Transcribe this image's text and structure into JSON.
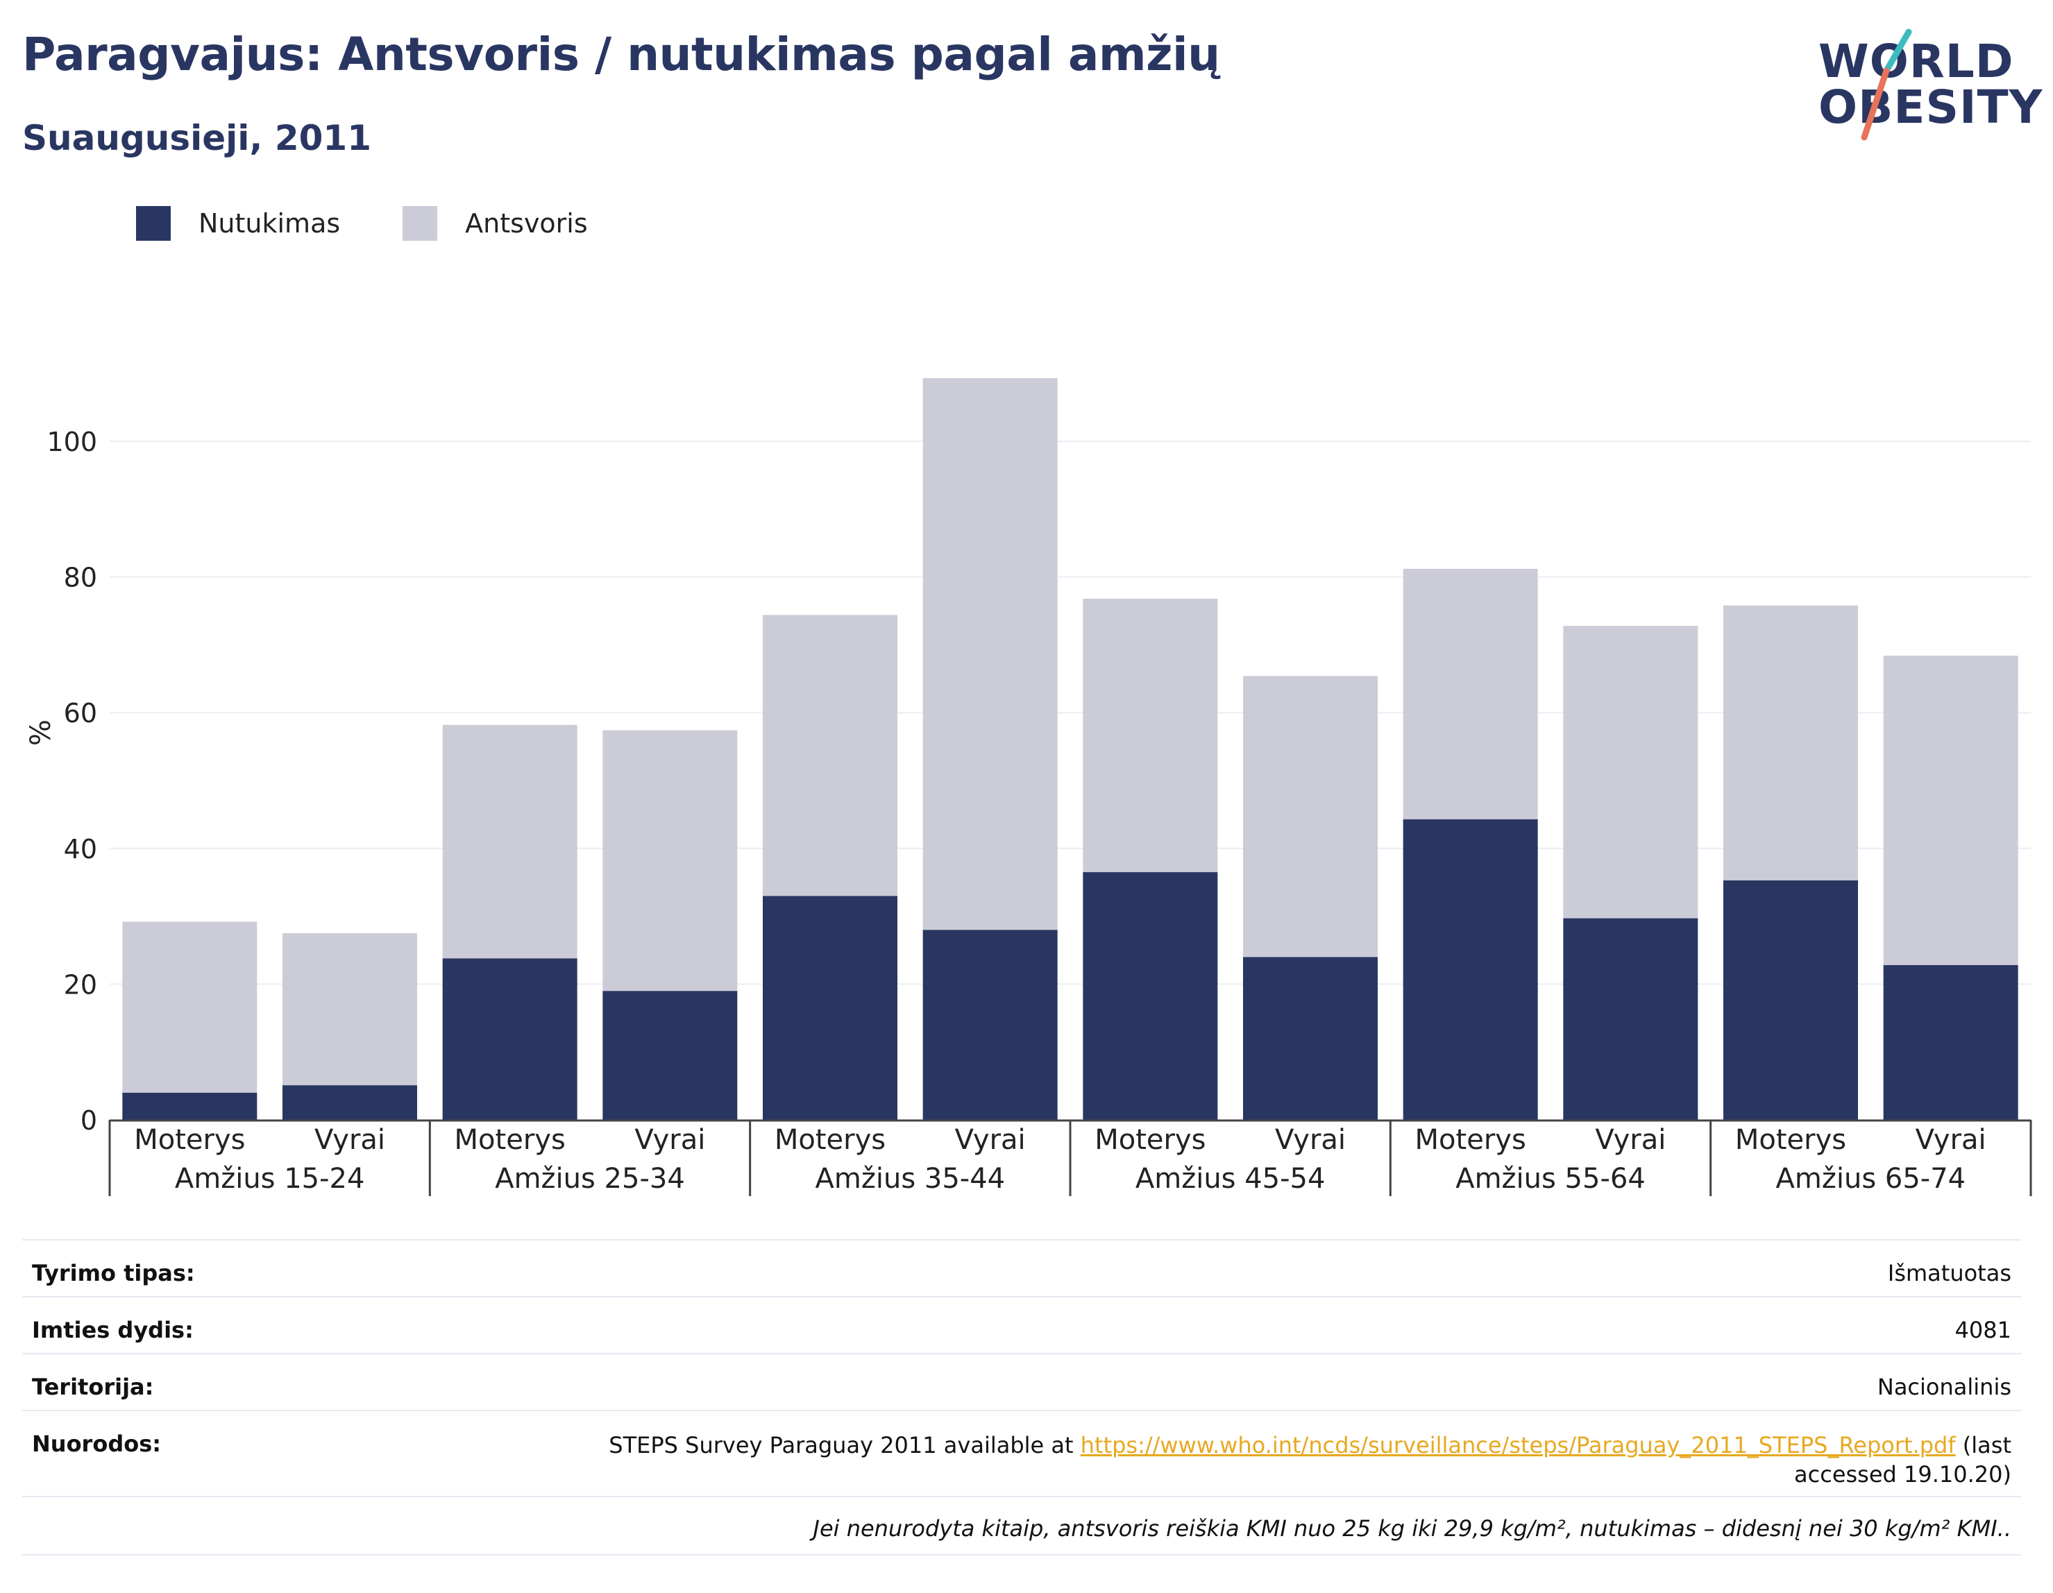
{
  "header": {
    "title": "Paragvajus: Antsvoris / nutukimas pagal amžių",
    "subtitle": "Suaugusieji, 2011"
  },
  "logo": {
    "line1": "WORLD",
    "line2": "OBESITY"
  },
  "legend": [
    {
      "label": "Nutukimas",
      "color": "#2a3662"
    },
    {
      "label": "Antsvoris",
      "color": "#cbccd7"
    }
  ],
  "chart_data": {
    "type": "bar",
    "stacked": true,
    "ylabel": "%",
    "ylim": [
      0,
      110
    ],
    "yticks": [
      0,
      20,
      40,
      60,
      80,
      100
    ],
    "grid": true,
    "legend_position": "top-left",
    "groups": [
      "Amžius 15-24",
      "Amžius 25-34",
      "Amžius 35-44",
      "Amžius 45-54",
      "Amžius 55-64",
      "Amžius 65-74"
    ],
    "subcategories": [
      "Moterys",
      "Vyrai"
    ],
    "series": [
      {
        "name": "Nutukimas",
        "color": "#2a3662",
        "values": [
          4.0,
          5.1,
          23.8,
          19.0,
          33.0,
          28.0,
          36.5,
          24.0,
          44.3,
          29.7,
          35.3,
          22.8
        ]
      },
      {
        "name": "Antsvoris",
        "color": "#cbccd7",
        "values": [
          25.2,
          22.4,
          34.4,
          38.4,
          41.4,
          81.3,
          40.3,
          41.4,
          36.9,
          43.1,
          40.5,
          45.6
        ]
      }
    ]
  },
  "info": [
    {
      "key": "Tyrimo tipas:",
      "value": "Išmatuotas"
    },
    {
      "key": "Imties dydis:",
      "value": "4081"
    },
    {
      "key": "Teritorija:",
      "value": "Nacionalinis"
    },
    {
      "key": "Nuorodos:",
      "value_prefix": "STEPS Survey Paraguay 2011 available at ",
      "link": "https://www.who.int/ncds/surveillance/steps/Paraguay_2011_STEPS_Report.pdf",
      "value_suffix": " (last",
      "value_line2": "accessed 19.10.20)"
    }
  ],
  "footnote": "Jei nenurodyta kitaip, antsvoris reiškia KMI nuo 25 kg iki 29,9 kg/m², nutukimas – didesnį nei 30 kg/m² KMI.."
}
